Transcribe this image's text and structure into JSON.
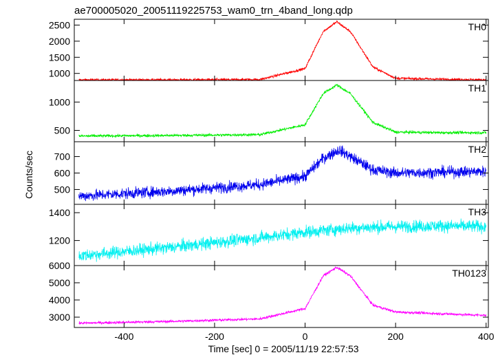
{
  "chart_data": {
    "type": "line",
    "title": "ae700005020_20051119225753_wam0_trn_4band_long.qdp",
    "xlabel": "Time [sec] 0 = 2005/11/19 22:57:53",
    "ylabel": "Counts/sec",
    "xlim": [
      -510,
      405
    ],
    "x_ticks": [
      -400,
      -200,
      0,
      200,
      400
    ],
    "grid": false,
    "panels": [
      {
        "name": "TH0",
        "color": "#ff0000",
        "ylim": [
          780,
          2680
        ],
        "y_ticks": [
          1000,
          1500,
          2000,
          2500
        ],
        "baseline_start": 800,
        "baseline_end": 800,
        "peak_time": 70,
        "peak_value": 2600,
        "noise": 28,
        "x": [
          -500,
          -300,
          -100,
          0,
          40,
          70,
          100,
          150,
          200,
          300,
          400
        ],
        "y": [
          800,
          800,
          810,
          1150,
          2300,
          2600,
          2300,
          1200,
          850,
          820,
          800
        ]
      },
      {
        "name": "TH1",
        "color": "#00ee00",
        "ylim": [
          300,
          1380
        ],
        "y_ticks": [
          500,
          1000
        ],
        "baseline_start": 400,
        "baseline_end": 460,
        "peak_time": 70,
        "peak_value": 1300,
        "noise": 18,
        "x": [
          -500,
          -300,
          -100,
          0,
          40,
          70,
          100,
          150,
          200,
          300,
          400
        ],
        "y": [
          400,
          410,
          425,
          600,
          1150,
          1300,
          1150,
          640,
          470,
          460,
          460
        ]
      },
      {
        "name": "TH2",
        "color": "#0000ee",
        "ylim": [
          410,
          790
        ],
        "y_ticks": [
          500,
          600,
          700
        ],
        "baseline_start": 460,
        "baseline_end": 610,
        "peak_time": 75,
        "peak_value": 740,
        "noise": 24,
        "x": [
          -500,
          -300,
          -100,
          0,
          40,
          75,
          100,
          150,
          200,
          300,
          400
        ],
        "y": [
          460,
          490,
          530,
          580,
          690,
          740,
          700,
          620,
          600,
          605,
          610
        ]
      },
      {
        "name": "TH3",
        "color": "#00f0f0",
        "ylim": [
          1020,
          1460
        ],
        "y_ticks": [
          1200,
          1400
        ],
        "baseline_start": 1090,
        "baseline_end": 1300,
        "peak_time": null,
        "peak_value": null,
        "noise": 32,
        "x": [
          -500,
          -300,
          -100,
          0,
          100,
          200,
          300,
          400
        ],
        "y": [
          1090,
          1150,
          1220,
          1260,
          1290,
          1300,
          1305,
          1300
        ]
      },
      {
        "name": "TH0123",
        "color": "#ff00ff",
        "ylim": [
          2400,
          6000
        ],
        "y_ticks": [
          3000,
          4000,
          5000,
          6000
        ],
        "baseline_start": 2650,
        "baseline_end": 3100,
        "peak_time": 70,
        "peak_value": 5900,
        "noise": 55,
        "x": [
          -500,
          -300,
          -100,
          0,
          40,
          70,
          100,
          150,
          200,
          300,
          400
        ],
        "y": [
          2650,
          2750,
          2900,
          3500,
          5400,
          5900,
          5400,
          3700,
          3300,
          3200,
          3100
        ]
      }
    ]
  }
}
